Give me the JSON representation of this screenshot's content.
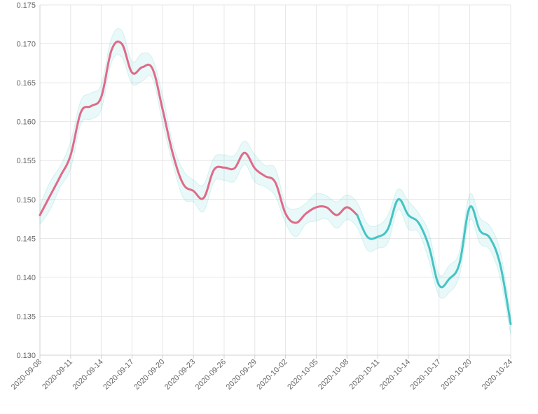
{
  "chart_data": {
    "type": "line",
    "title": "",
    "xlabel": "",
    "ylabel": "",
    "ylim": [
      0.13,
      0.175
    ],
    "y_ticks": [
      "0.130",
      "0.135",
      "0.140",
      "0.145",
      "0.150",
      "0.155",
      "0.160",
      "0.165",
      "0.170",
      "0.175"
    ],
    "x_tick_labels": [
      "2020-09-08",
      "2020-09-11",
      "2020-09-14",
      "2020-09-17",
      "2020-09-20",
      "2020-09-23",
      "2020-09-26",
      "2020-09-29",
      "2020-10-02",
      "2020-10-05",
      "2020-10-08",
      "2020-10-11",
      "2020-10-14",
      "2020-10-17",
      "2020-10-20",
      "2020-10-24"
    ],
    "x_tick_days": [
      0,
      3,
      6,
      9,
      12,
      15,
      18,
      21,
      24,
      27,
      30,
      33,
      36,
      39,
      42,
      46
    ],
    "grid": true,
    "legend": "none",
    "band_color": "#46c3c3",
    "series": [
      {
        "color": "#e06a88",
        "x": [
          "2020-09-08",
          "2020-09-09",
          "2020-09-10",
          "2020-09-11",
          "2020-09-12",
          "2020-09-13",
          "2020-09-14",
          "2020-09-15",
          "2020-09-16",
          "2020-09-17",
          "2020-09-18",
          "2020-09-19",
          "2020-09-20",
          "2020-09-21",
          "2020-09-22",
          "2020-09-23",
          "2020-09-24",
          "2020-09-25",
          "2020-09-26",
          "2020-09-27",
          "2020-09-28",
          "2020-09-29",
          "2020-09-30",
          "2020-10-01",
          "2020-10-02",
          "2020-10-03",
          "2020-10-04",
          "2020-10-05",
          "2020-10-06",
          "2020-10-07",
          "2020-10-08",
          "2020-10-09"
        ],
        "values": [
          0.148,
          0.1505,
          0.153,
          0.1557,
          0.1612,
          0.162,
          0.1632,
          0.1692,
          0.17,
          0.1663,
          0.167,
          0.1668,
          0.1615,
          0.1558,
          0.152,
          0.1511,
          0.1502,
          0.1538,
          0.1541,
          0.154,
          0.156,
          0.154,
          0.153,
          0.1522,
          0.1482,
          0.147,
          0.1482,
          0.149,
          0.149,
          0.148,
          0.149,
          0.148
        ]
      },
      {
        "color": "#46c3c3",
        "x": [
          "2020-10-09",
          "2020-10-10",
          "2020-10-11",
          "2020-10-12",
          "2020-10-13",
          "2020-10-14",
          "2020-10-15",
          "2020-10-16",
          "2020-10-17",
          "2020-10-18",
          "2020-10-19",
          "2020-10-20",
          "2020-10-21",
          "2020-10-22",
          "2020-10-23",
          "2020-10-24"
        ],
        "values": [
          0.148,
          0.1452,
          0.1452,
          0.1462,
          0.15,
          0.148,
          0.147,
          0.144,
          0.139,
          0.1398,
          0.1418,
          0.149,
          0.146,
          0.145,
          0.1415,
          0.134
        ]
      }
    ]
  }
}
